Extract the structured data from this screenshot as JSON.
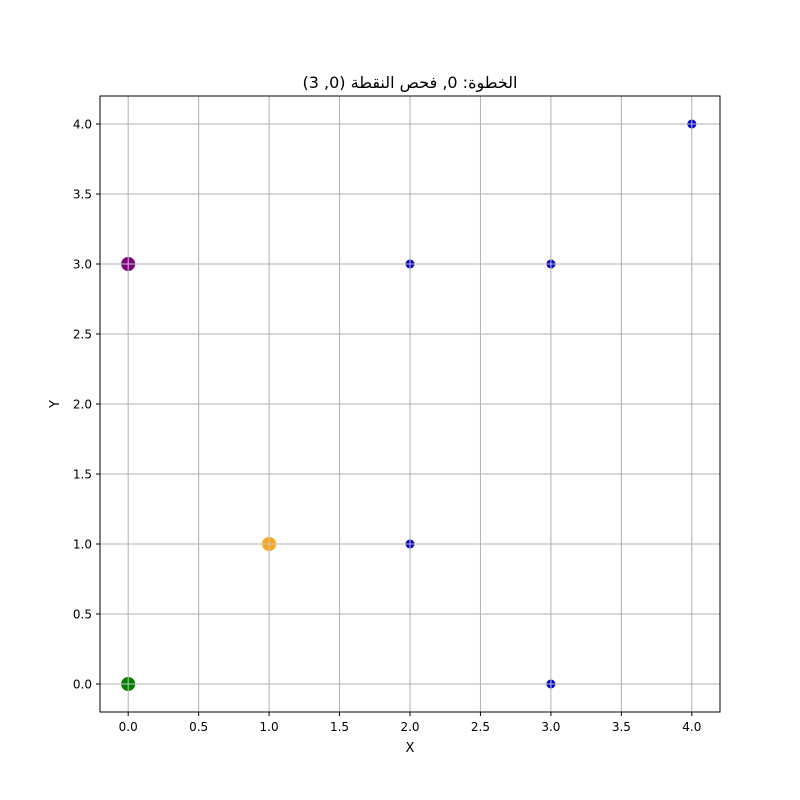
{
  "chart_data": {
    "type": "scatter",
    "title": "الخطوة: 0, فحص النقطة (0, 3)",
    "xlabel": "X",
    "ylabel": "Y",
    "xlim": [
      -0.2,
      4.2
    ],
    "ylim": [
      -0.2,
      4.2
    ],
    "grid": true,
    "xticks": [
      0.0,
      0.5,
      1.0,
      1.5,
      2.0,
      2.5,
      3.0,
      3.5,
      4.0
    ],
    "yticks": [
      0.0,
      0.5,
      1.0,
      1.5,
      2.0,
      2.5,
      3.0,
      3.5,
      4.0
    ],
    "xtick_labels": [
      "0.0",
      "0.5",
      "1.0",
      "1.5",
      "2.0",
      "2.5",
      "3.0",
      "3.5",
      "4.0"
    ],
    "ytick_labels": [
      "0.0",
      "0.5",
      "1.0",
      "1.5",
      "2.0",
      "2.5",
      "3.0",
      "3.5",
      "4.0"
    ],
    "series": [
      {
        "color": "#0000cd",
        "size": "small",
        "points": [
          [
            2,
            3
          ],
          [
            3,
            3
          ],
          [
            4,
            4
          ],
          [
            2,
            1
          ],
          [
            3,
            0
          ]
        ]
      },
      {
        "color": "#800080",
        "size": "large",
        "points": [
          [
            0,
            3
          ]
        ]
      },
      {
        "color": "#f5a623",
        "size": "large",
        "points": [
          [
            1,
            1
          ]
        ]
      },
      {
        "color": "#008000",
        "size": "large",
        "points": [
          [
            0,
            0
          ]
        ]
      }
    ]
  }
}
